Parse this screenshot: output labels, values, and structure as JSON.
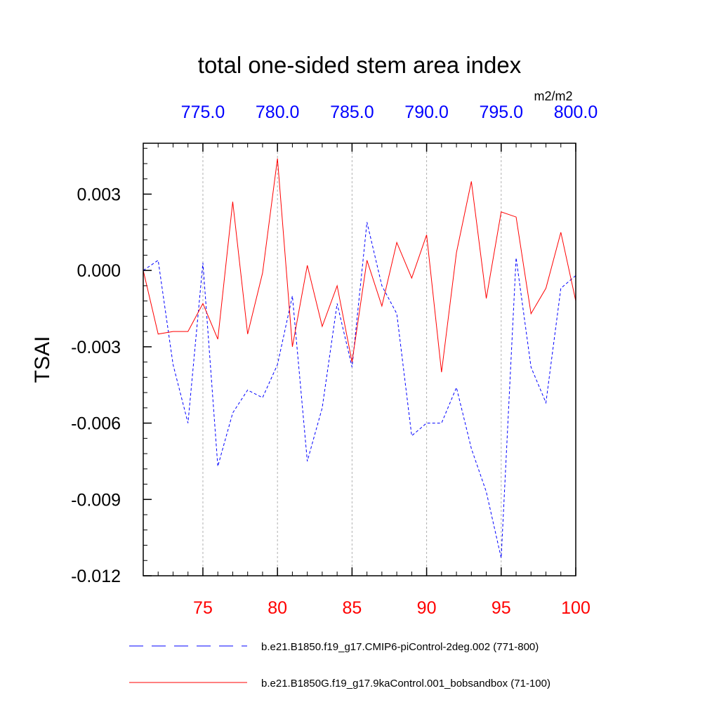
{
  "chart_data": {
    "type": "line",
    "title": "total one-sided stem area index",
    "units": "m2/m2",
    "ylabel": "TSAI",
    "xlim": [
      71,
      100
    ],
    "ylim": [
      -0.012,
      0.005
    ],
    "x": [
      71,
      72,
      73,
      74,
      75,
      76,
      77,
      78,
      79,
      80,
      81,
      82,
      83,
      84,
      85,
      86,
      87,
      88,
      89,
      90,
      91,
      92,
      93,
      94,
      95,
      96,
      97,
      98,
      99,
      100
    ],
    "bottom_axis": {
      "ticks": [
        75,
        80,
        85,
        90,
        95,
        100
      ],
      "labels": [
        "75",
        "80",
        "85",
        "90",
        "95",
        "100"
      ],
      "color": "#ff0000"
    },
    "top_axis": {
      "ticks": [
        75,
        80,
        85,
        90,
        95,
        100
      ],
      "labels": [
        "775.0",
        "780.0",
        "785.0",
        "790.0",
        "795.0",
        "800.0"
      ],
      "color": "#0000ff"
    },
    "left_axis": {
      "ticks": [
        0.003,
        0.0,
        -0.003,
        -0.006,
        -0.009,
        -0.012
      ],
      "labels": [
        "0.003",
        "0.000",
        "-0.003",
        "-0.006",
        "-0.009",
        "-0.012"
      ]
    },
    "series": [
      {
        "name": "b.e21.B1850.f19_g17.CMIP6-piControl-2deg.002 (771-800)",
        "color": "#0000ff",
        "style": "dashed",
        "values": [
          0.0,
          0.0004,
          -0.0037,
          -0.006,
          0.0003,
          -0.0077,
          -0.0056,
          -0.0047,
          -0.005,
          -0.0037,
          -0.001,
          -0.0075,
          -0.0054,
          -0.0013,
          -0.0038,
          0.0019,
          -0.0006,
          -0.0017,
          -0.0065,
          -0.006,
          -0.006,
          -0.0046,
          -0.007,
          -0.0087,
          -0.0113,
          0.0005,
          -0.0038,
          -0.0052,
          -0.0007,
          -0.0002
        ]
      },
      {
        "name": "b.e21.B1850G.f19_g17.9kaControl.001_bobsandbox (71-100)",
        "color": "#ff0000",
        "style": "solid",
        "values": [
          0.0,
          -0.0025,
          -0.0024,
          -0.0024,
          -0.0013,
          -0.0027,
          0.0027,
          -0.0025,
          -0.0001,
          0.0044,
          -0.003,
          0.0002,
          -0.0022,
          -0.0006,
          -0.0036,
          0.0004,
          -0.0014,
          0.0011,
          -0.0003,
          0.0014,
          -0.004,
          0.0007,
          0.0035,
          -0.0011,
          0.0023,
          0.0021,
          -0.0017,
          -0.0007,
          0.0015,
          -0.0012
        ]
      }
    ]
  }
}
